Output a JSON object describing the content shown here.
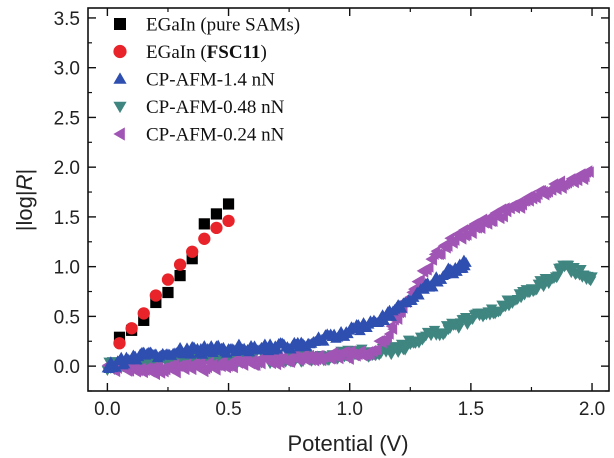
{
  "chart_data": {
    "type": "scatter",
    "xlabel": "Potential (V)",
    "ylabel_parts": [
      "|log|",
      "R",
      "|"
    ],
    "xlim": [
      -0.08,
      2.07
    ],
    "ylim": [
      -0.25,
      3.6
    ],
    "x_ticks": [
      "0.0",
      "0.5",
      "1.0",
      "1.5",
      "2.0"
    ],
    "y_ticks": [
      "0.0",
      "0.5",
      "1.0",
      "1.5",
      "2.0",
      "2.5",
      "3.0",
      "3.5"
    ],
    "grid": false,
    "legend_position": "top-left",
    "series": [
      {
        "name": "EGaIn (pure SAMs)",
        "name_plain": "EGaIn (",
        "name_bold": "",
        "name_tail": "pure SAMs)",
        "marker": "square",
        "color": "#000000",
        "points": [
          [
            0.05,
            0.29
          ],
          [
            0.1,
            0.36
          ],
          [
            0.15,
            0.46
          ],
          [
            0.2,
            0.64
          ],
          [
            0.25,
            0.74
          ],
          [
            0.3,
            0.91
          ],
          [
            0.35,
            1.08
          ],
          [
            0.4,
            1.43
          ],
          [
            0.45,
            1.53
          ],
          [
            0.5,
            1.63
          ]
        ]
      },
      {
        "name": "EGaIn (FSC11)",
        "name_plain": "EGaIn (",
        "name_bold": "FSC11",
        "name_tail": ")",
        "marker": "circle",
        "color": "#e8232a",
        "points": [
          [
            0.05,
            0.23
          ],
          [
            0.1,
            0.38
          ],
          [
            0.15,
            0.53
          ],
          [
            0.2,
            0.71
          ],
          [
            0.25,
            0.87
          ],
          [
            0.3,
            1.02
          ],
          [
            0.35,
            1.15
          ],
          [
            0.4,
            1.28
          ],
          [
            0.45,
            1.39
          ],
          [
            0.5,
            1.46
          ]
        ]
      },
      {
        "name": "CP-AFM-1.4 nN",
        "name_plain": "CP-AFM-1.4 nN",
        "name_bold": "",
        "name_tail": "",
        "marker": "triangle-up",
        "color": "#2f4fb0",
        "points": [
          [
            0.0,
            0.0
          ],
          [
            0.05,
            0.04
          ],
          [
            0.1,
            0.08
          ],
          [
            0.15,
            0.1
          ],
          [
            0.2,
            0.12
          ],
          [
            0.25,
            0.13
          ],
          [
            0.3,
            0.14
          ],
          [
            0.35,
            0.15
          ],
          [
            0.4,
            0.16
          ],
          [
            0.45,
            0.17
          ],
          [
            0.5,
            0.17
          ],
          [
            0.55,
            0.18
          ],
          [
            0.6,
            0.18
          ],
          [
            0.65,
            0.18
          ],
          [
            0.7,
            0.19
          ],
          [
            0.75,
            0.2
          ],
          [
            0.8,
            0.22
          ],
          [
            0.85,
            0.25
          ],
          [
            0.9,
            0.28
          ],
          [
            0.95,
            0.31
          ],
          [
            1.0,
            0.35
          ],
          [
            1.05,
            0.39
          ],
          [
            1.1,
            0.44
          ],
          [
            1.15,
            0.5
          ],
          [
            1.2,
            0.58
          ],
          [
            1.25,
            0.67
          ],
          [
            1.3,
            0.76
          ],
          [
            1.35,
            0.85
          ],
          [
            1.4,
            0.93
          ],
          [
            1.45,
            1.0
          ],
          [
            1.48,
            1.04
          ]
        ]
      },
      {
        "name": "CP-AFM-0.48 nN",
        "name_plain": "CP-AFM-0.48 nN",
        "name_bold": "",
        "name_tail": "",
        "marker": "triangle-down",
        "color": "#3f8580",
        "points": [
          [
            0.0,
            0.0
          ],
          [
            0.05,
            0.02
          ],
          [
            0.1,
            0.03
          ],
          [
            0.15,
            0.04
          ],
          [
            0.2,
            0.04
          ],
          [
            0.25,
            0.05
          ],
          [
            0.3,
            0.05
          ],
          [
            0.35,
            0.06
          ],
          [
            0.4,
            0.06
          ],
          [
            0.45,
            0.06
          ],
          [
            0.5,
            0.07
          ],
          [
            0.55,
            0.07
          ],
          [
            0.6,
            0.07
          ],
          [
            0.65,
            0.07
          ],
          [
            0.7,
            0.07
          ],
          [
            0.75,
            0.08
          ],
          [
            0.8,
            0.08
          ],
          [
            0.85,
            0.09
          ],
          [
            0.9,
            0.1
          ],
          [
            0.95,
            0.11
          ],
          [
            1.0,
            0.12
          ],
          [
            1.05,
            0.13
          ],
          [
            1.1,
            0.14
          ],
          [
            1.15,
            0.15
          ],
          [
            1.2,
            0.18
          ],
          [
            1.25,
            0.23
          ],
          [
            1.3,
            0.28
          ],
          [
            1.35,
            0.33
          ],
          [
            1.4,
            0.37
          ],
          [
            1.45,
            0.42
          ],
          [
            1.5,
            0.47
          ],
          [
            1.55,
            0.52
          ],
          [
            1.6,
            0.57
          ],
          [
            1.65,
            0.63
          ],
          [
            1.7,
            0.7
          ],
          [
            1.75,
            0.77
          ],
          [
            1.8,
            0.84
          ],
          [
            1.85,
            0.92
          ],
          [
            1.88,
            0.99
          ],
          [
            1.92,
            0.97
          ],
          [
            1.96,
            0.93
          ],
          [
            2.0,
            0.9
          ]
        ]
      },
      {
        "name": "CP-AFM-0.24 nN",
        "name_plain": "CP-AFM-0.24 nN",
        "name_bold": "",
        "name_tail": "",
        "marker": "triangle-left",
        "color": "#a055b5",
        "points": [
          [
            0.0,
            -0.02
          ],
          [
            0.05,
            -0.03
          ],
          [
            0.1,
            -0.04
          ],
          [
            0.15,
            -0.04
          ],
          [
            0.2,
            -0.04
          ],
          [
            0.25,
            -0.03
          ],
          [
            0.3,
            -0.03
          ],
          [
            0.35,
            -0.02
          ],
          [
            0.4,
            -0.01
          ],
          [
            0.45,
            0.0
          ],
          [
            0.5,
            0.02
          ],
          [
            0.55,
            0.04
          ],
          [
            0.6,
            0.05
          ],
          [
            0.65,
            0.06
          ],
          [
            0.7,
            0.06
          ],
          [
            0.75,
            0.07
          ],
          [
            0.8,
            0.07
          ],
          [
            0.85,
            0.08
          ],
          [
            0.9,
            0.09
          ],
          [
            0.95,
            0.1
          ],
          [
            1.0,
            0.11
          ],
          [
            1.05,
            0.13
          ],
          [
            1.1,
            0.17
          ],
          [
            1.15,
            0.3
          ],
          [
            1.2,
            0.5
          ],
          [
            1.25,
            0.72
          ],
          [
            1.3,
            0.93
          ],
          [
            1.35,
            1.1
          ],
          [
            1.4,
            1.22
          ],
          [
            1.45,
            1.3
          ],
          [
            1.5,
            1.37
          ],
          [
            1.55,
            1.44
          ],
          [
            1.6,
            1.5
          ],
          [
            1.65,
            1.56
          ],
          [
            1.7,
            1.62
          ],
          [
            1.75,
            1.68
          ],
          [
            1.8,
            1.74
          ],
          [
            1.85,
            1.8
          ],
          [
            1.9,
            1.85
          ],
          [
            1.95,
            1.9
          ],
          [
            1.99,
            1.95
          ]
        ]
      }
    ]
  }
}
